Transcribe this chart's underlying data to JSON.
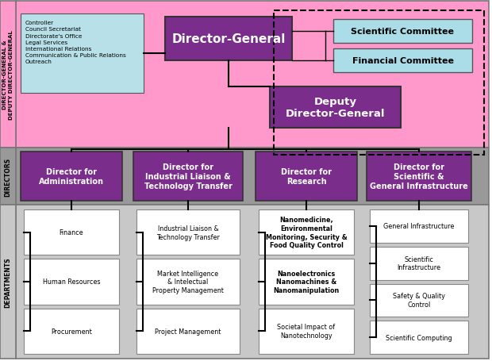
{
  "pink_bg": "#FF99CC",
  "gray_bg": "#999999",
  "light_gray_bg": "#C8C8C8",
  "purple": "#7B2D8B",
  "light_blue_committee": "#AADDE8",
  "white": "#FFFFFF",
  "black": "#000000",
  "controller_bg": "#B8E0E8",
  "side_labels": {
    "top": "DIRECTOR-GENERAL &\nDEPUTY DIRECTOR-GENERAL",
    "middle": "DIRECTORS",
    "bottom": "DEPARTMENTS"
  },
  "controller_text": "Controller\nCouncil Secretariat\nDirectorate's Office\nLegal Services\nInternational Relations\nCommunication & Public Relations\nOutreach",
  "director_general": "Director-General",
  "deputy_director_general": "Deputy\nDirector-General",
  "scientific_committee": "Scientific Committee",
  "financial_committee": "Financial Committee",
  "directors": [
    "Director for\nAdministration",
    "Director for\nIndustrial Liaison &\nTechnology Transfer",
    "Director for\nResearch",
    "Director for\nScientific &\nGeneral Infrastructure"
  ],
  "departments": [
    [
      "Finance",
      "Human Resources",
      "Procurement"
    ],
    [
      "Industrial Liaison &\nTechnology Transfer",
      "Market Intelligence\n& Intelectual\nProperty Management",
      "Project Management"
    ],
    [
      "Nanomedicine,\nEnvironmental\nMonitoring, Security &\nFood Quality Control",
      "Nanoelectronics\nNanomachines &\nNanomanipulation",
      "Societal Impact of\nNanotechnology"
    ],
    [
      "General Infrastructure",
      "Scientific\nInfrastructure",
      "Safety & Quality\nControl",
      "Scientific Computing"
    ]
  ],
  "dept_bold": [
    [
      false,
      false,
      false
    ],
    [
      false,
      false,
      false
    ],
    [
      true,
      true,
      false
    ],
    [
      false,
      false,
      false,
      false
    ]
  ]
}
